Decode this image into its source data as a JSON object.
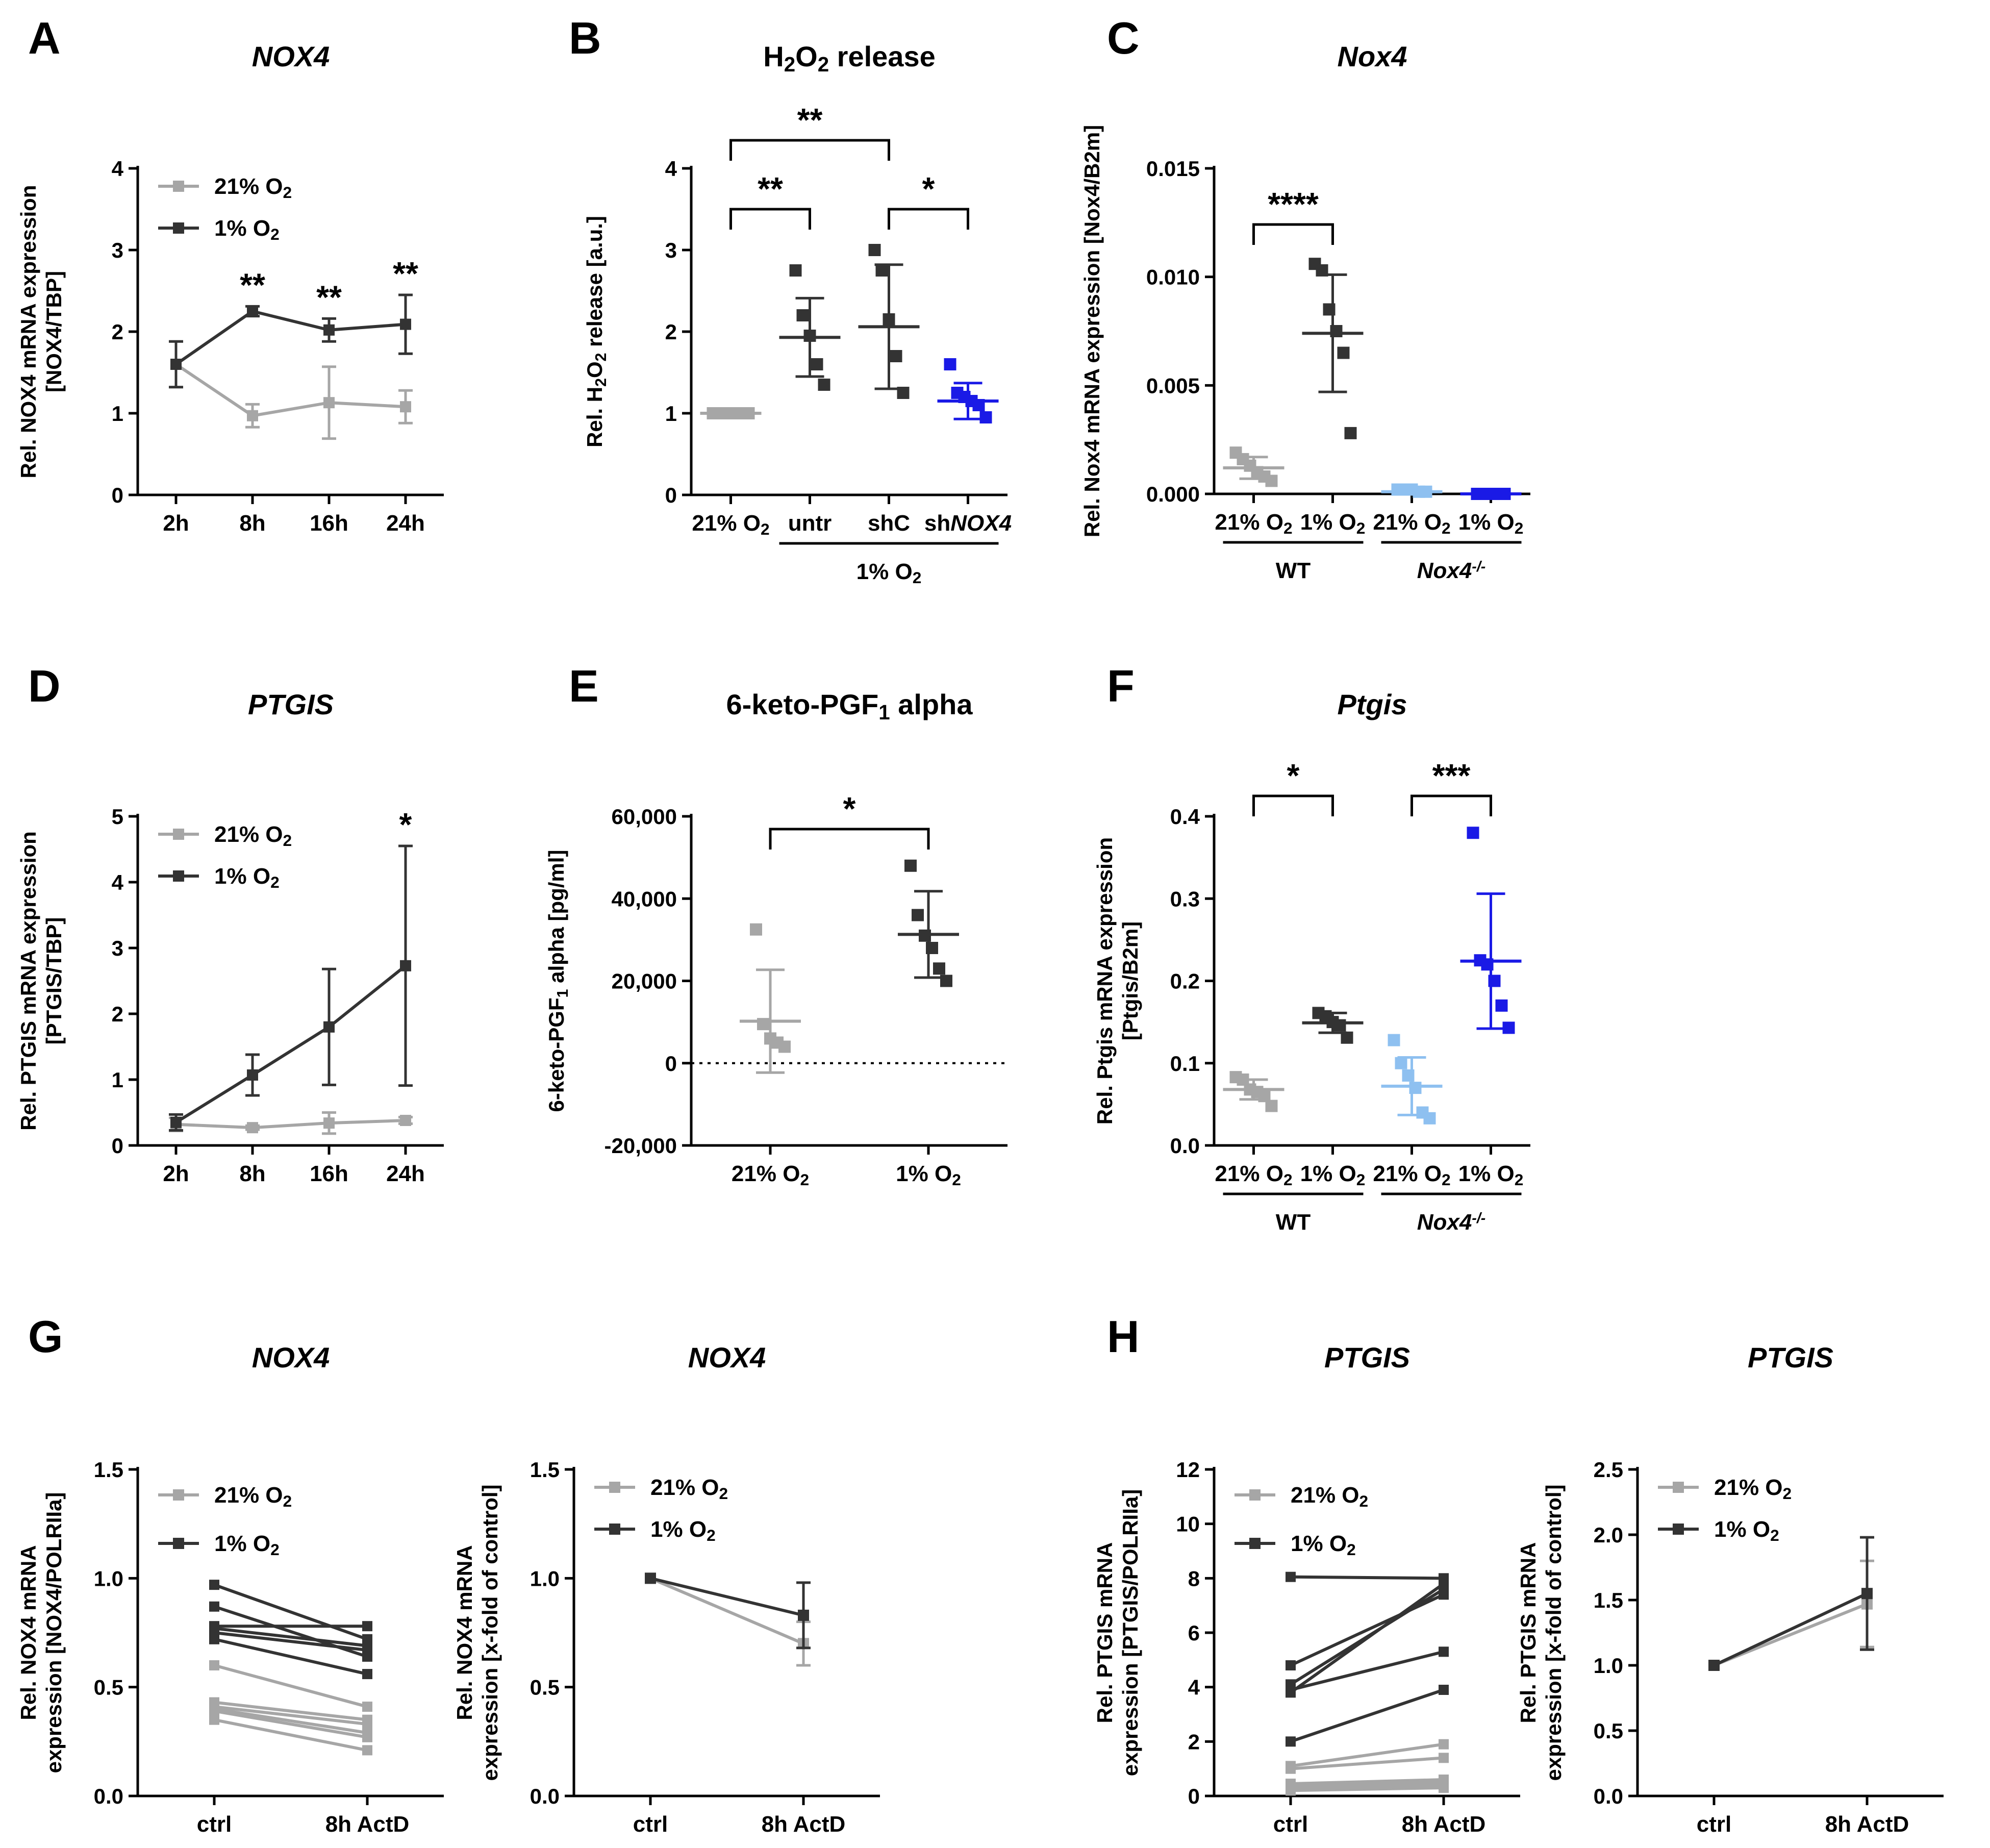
{
  "colors": {
    "gray": "#a6a6a6",
    "dark": "#333333",
    "blue": "#1a1ae6",
    "lightblue": "#8ec0f0"
  },
  "chart_data": [
    {
      "panel": "A",
      "type": "line",
      "title": "NOX4",
      "ylabel": [
        "Rel. NOX4 mRNA expression",
        "[NOX4/TBP]"
      ],
      "ylim": [
        0,
        4
      ],
      "yticks": [
        "0",
        "1",
        "2",
        "3",
        "4"
      ],
      "categories": [
        "2h",
        "8h",
        "16h",
        "24h"
      ],
      "series": [
        {
          "name": "21% O2",
          "color": "gray",
          "values": [
            1.6,
            0.97,
            1.13,
            1.08
          ],
          "err": [
            0.28,
            0.14,
            0.44,
            0.2
          ]
        },
        {
          "name": "1% O2",
          "color": "dark",
          "values": [
            1.6,
            2.25,
            2.02,
            2.09
          ],
          "err": [
            0.28,
            0.06,
            0.14,
            0.36
          ]
        }
      ],
      "stars": [
        "",
        "**",
        "**",
        "**"
      ],
      "legend": "top-left"
    },
    {
      "panel": "B",
      "type": "scatter",
      "title": "H2O2 release",
      "ylabel": [
        "Rel. H2O2 release [a.u.]"
      ],
      "ylim": [
        0,
        4
      ],
      "yticks": [
        "0",
        "1",
        "2",
        "3",
        "4"
      ],
      "categories": [
        "21% O2",
        "untr",
        "shC",
        "shNOX4"
      ],
      "groups": [
        {
          "color": "gray",
          "points": [
            1,
            1,
            1,
            1,
            1,
            1
          ],
          "mean": 1.0,
          "sd": 0
        },
        {
          "color": "dark",
          "points": [
            2.75,
            2.2,
            1.95,
            1.6,
            1.35
          ],
          "mean": 1.93,
          "sd": 0.48
        },
        {
          "color": "dark",
          "points": [
            3.0,
            2.75,
            2.15,
            1.7,
            1.25
          ],
          "mean": 2.06,
          "sd": 0.76
        },
        {
          "color": "blue",
          "points": [
            1.6,
            1.25,
            1.2,
            1.15,
            1.1,
            0.95
          ],
          "mean": 1.15,
          "sd": 0.22
        }
      ],
      "brackets": [
        {
          "from": 0,
          "to": 2,
          "label": "**"
        },
        {
          "from": 0,
          "to": 1,
          "label": "**"
        },
        {
          "from": 2,
          "to": 3,
          "label": "*"
        }
      ],
      "groupline": {
        "label": "1% O2",
        "from": 1,
        "to": 3
      }
    },
    {
      "panel": "C",
      "type": "scatter",
      "title": "Nox4",
      "ylabel": [
        "Rel. Nox4 mRNA expression [Nox4/B2m]"
      ],
      "ylim": [
        0,
        0.015
      ],
      "yticks": [
        "0.000",
        "0.005",
        "0.010",
        "0.015"
      ],
      "categories": [
        "21% O2",
        "1% O2",
        "21% O2",
        "1% O2"
      ],
      "groups": [
        {
          "color": "gray",
          "points": [
            0.0019,
            0.0016,
            0.0013,
            0.001,
            0.0008,
            0.0006
          ],
          "mean": 0.0012,
          "sd": 0.0005
        },
        {
          "color": "dark",
          "points": [
            0.0106,
            0.0103,
            0.0085,
            0.0075,
            0.0065,
            0.0028
          ],
          "mean": 0.0074,
          "sd": 0.0027
        },
        {
          "color": "lightblue",
          "points": [
            0.0002,
            0.0002,
            0.0002,
            0.0001,
            0.0001
          ],
          "mean": 0.0001,
          "sd": 0.0001
        },
        {
          "color": "blue",
          "points": [
            0,
            0,
            0,
            0
          ],
          "mean": 0,
          "sd": 0
        }
      ],
      "brackets": [
        {
          "from": 0,
          "to": 1,
          "label": "****"
        }
      ],
      "grouplines": [
        {
          "label": "WT",
          "from": 0,
          "to": 1
        },
        {
          "label": "Nox4-/-",
          "from": 2,
          "to": 3
        }
      ]
    },
    {
      "panel": "D",
      "type": "line",
      "title": "PTGIS",
      "ylabel": [
        "Rel. PTGIS mRNA expression",
        "[PTGIS/TBP]"
      ],
      "ylim": [
        0,
        5
      ],
      "yticks": [
        "0",
        "1",
        "2",
        "3",
        "4",
        "5"
      ],
      "categories": [
        "2h",
        "8h",
        "16h",
        "24h"
      ],
      "series": [
        {
          "name": "21% O2",
          "color": "gray",
          "values": [
            0.32,
            0.27,
            0.34,
            0.38
          ],
          "err": [
            0.1,
            0.03,
            0.16,
            0.05
          ]
        },
        {
          "name": "1% O2",
          "color": "dark",
          "values": [
            0.35,
            1.07,
            1.8,
            2.73
          ],
          "err": [
            0.12,
            0.31,
            0.88,
            1.82
          ]
        }
      ],
      "stars": [
        "",
        "",
        "",
        "*"
      ],
      "legend": "top-left"
    },
    {
      "panel": "E",
      "type": "scatter",
      "title": "6-keto-PGF1 alpha",
      "ylabel": [
        "6-keto-PGF1 alpha [pg/ml]"
      ],
      "ylim": [
        -20000,
        60000
      ],
      "yticks": [
        "-20,000",
        "0",
        "20,000",
        "40,000",
        "60,000"
      ],
      "categories": [
        "21% O2",
        "1% O2"
      ],
      "groups": [
        {
          "color": "gray",
          "points": [
            32500,
            9500,
            6000,
            5000,
            4000
          ],
          "mean": 10200,
          "sd": 12500
        },
        {
          "color": "dark",
          "points": [
            48000,
            36000,
            31000,
            28000,
            23000,
            20000
          ],
          "mean": 31300,
          "sd": 10500
        }
      ],
      "brackets": [
        {
          "from": 0,
          "to": 1,
          "label": "*"
        }
      ],
      "zeroline": true
    },
    {
      "panel": "F",
      "type": "scatter",
      "title": "Ptgis",
      "ylabel": [
        "Rel. Ptgis mRNA expression",
        "[Ptgis/B2m]"
      ],
      "ylim": [
        0,
        0.4
      ],
      "yticks": [
        "0.0",
        "0.1",
        "0.2",
        "0.3",
        "0.4"
      ],
      "categories": [
        "21% O2",
        "1% O2",
        "21% O2",
        "1% O2"
      ],
      "groups": [
        {
          "color": "gray",
          "points": [
            0.083,
            0.08,
            0.068,
            0.065,
            0.06,
            0.048
          ],
          "mean": 0.068,
          "sd": 0.012
        },
        {
          "color": "dark",
          "points": [
            0.161,
            0.157,
            0.15,
            0.146,
            0.131
          ],
          "mean": 0.149,
          "sd": 0.012
        },
        {
          "color": "lightblue",
          "points": [
            0.128,
            0.1,
            0.085,
            0.07,
            0.04,
            0.033
          ],
          "mean": 0.072,
          "sd": 0.035
        },
        {
          "color": "blue",
          "points": [
            0.38,
            0.225,
            0.22,
            0.2,
            0.17,
            0.143
          ],
          "mean": 0.224,
          "sd": 0.082
        }
      ],
      "brackets": [
        {
          "from": 0,
          "to": 1,
          "label": "*"
        },
        {
          "from": 2,
          "to": 3,
          "label": "***"
        }
      ],
      "grouplines": [
        {
          "label": "WT",
          "from": 0,
          "to": 1
        },
        {
          "label": "Nox4-/-",
          "from": 2,
          "to": 3
        }
      ]
    },
    {
      "panel": "G",
      "type": "line",
      "title": "NOX4",
      "ylabel": [
        "Rel. NOX4 mRNA",
        "expression [NOX4/POLRIIa]"
      ],
      "ylim": [
        0,
        1.5
      ],
      "yticks": [
        "0.0",
        "0.5",
        "1.0",
        "1.5"
      ],
      "categories": [
        "ctrl",
        "8h ActD"
      ],
      "paired": [
        {
          "color": "gray",
          "pairs": [
            [
              0.6,
              0.41
            ],
            [
              0.43,
              0.35
            ],
            [
              0.41,
              0.33
            ],
            [
              0.4,
              0.29
            ],
            [
              0.39,
              0.27
            ],
            [
              0.35,
              0.21
            ]
          ]
        },
        {
          "color": "dark",
          "pairs": [
            [
              0.97,
              0.72
            ],
            [
              0.87,
              0.64
            ],
            [
              0.78,
              0.78
            ],
            [
              0.77,
              0.69
            ],
            [
              0.75,
              0.67
            ],
            [
              0.72,
              0.56
            ]
          ]
        }
      ],
      "legend_series": [
        "21% O2",
        "1% O2"
      ]
    },
    {
      "panel": "G2",
      "type": "line",
      "title": "NOX4",
      "ylabel": [
        "Rel. NOX4 mRNA",
        "expression [x-fold of control]"
      ],
      "ylim": [
        0,
        1.5
      ],
      "yticks": [
        "0.0",
        "0.5",
        "1.0",
        "1.5"
      ],
      "categories": [
        "ctrl",
        "8h ActD"
      ],
      "series": [
        {
          "name": "21% O2",
          "color": "gray",
          "values": [
            1.0,
            0.7
          ],
          "err": [
            0,
            0.1
          ]
        },
        {
          "name": "1% O2",
          "color": "dark",
          "values": [
            1.0,
            0.83
          ],
          "err": [
            0,
            0.15
          ]
        }
      ]
    },
    {
      "panel": "H",
      "type": "line",
      "title": "PTGIS",
      "ylabel": [
        "Rel. PTGIS mRNA",
        "expression [PTGIS/POLRIIa]"
      ],
      "ylim": [
        0,
        12
      ],
      "yticks": [
        "0",
        "2",
        "4",
        "6",
        "8",
        "10",
        "12"
      ],
      "categories": [
        "ctrl",
        "8h ActD"
      ],
      "paired": [
        {
          "color": "gray",
          "pairs": [
            [
              1.1,
              1.9
            ],
            [
              1.0,
              1.4
            ],
            [
              0.45,
              0.6
            ],
            [
              0.35,
              0.5
            ],
            [
              0.3,
              0.4
            ],
            [
              0.2,
              0.3
            ]
          ]
        },
        {
          "color": "dark",
          "pairs": [
            [
              8.05,
              8.0
            ],
            [
              4.8,
              7.4
            ],
            [
              4.1,
              7.6
            ],
            [
              3.9,
              5.3
            ],
            [
              3.8,
              7.8
            ],
            [
              2.0,
              3.9
            ]
          ]
        }
      ],
      "legend_series": [
        "21% O2",
        "1% O2"
      ]
    },
    {
      "panel": "H2",
      "type": "line",
      "title": "PTGIS",
      "ylabel": [
        "Rel. PTGIS mRNA",
        "expression [x-fold of control]"
      ],
      "ylim": [
        0,
        2.5
      ],
      "yticks": [
        "0.0",
        "0.5",
        "1.0",
        "1.5",
        "2.0",
        "2.5"
      ],
      "categories": [
        "ctrl",
        "8h ActD"
      ],
      "series": [
        {
          "name": "21% O2",
          "color": "gray",
          "values": [
            1.0,
            1.47
          ],
          "err": [
            0,
            0.33
          ]
        },
        {
          "name": "1% O2",
          "color": "dark",
          "values": [
            1.0,
            1.55
          ],
          "err": [
            0,
            0.43
          ]
        }
      ]
    }
  ]
}
